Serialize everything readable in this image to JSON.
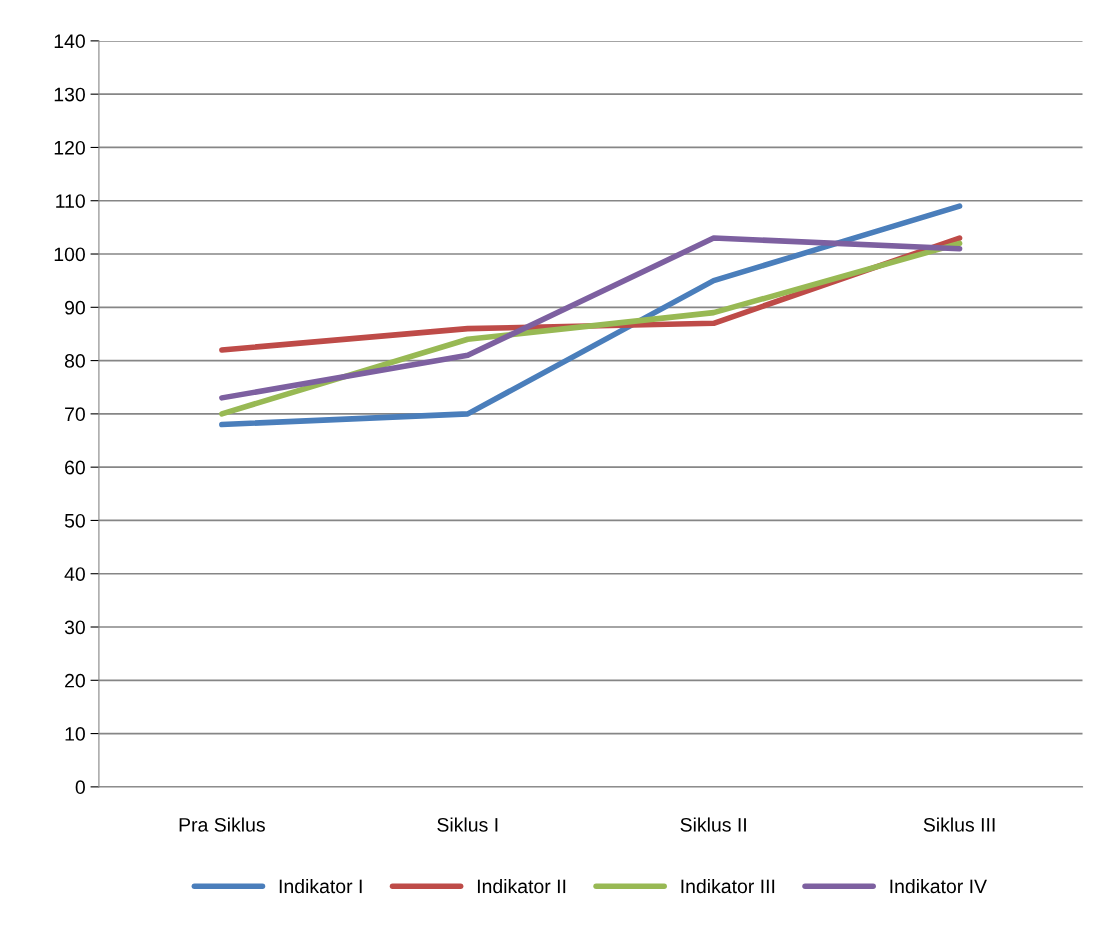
{
  "chart_data": {
    "type": "line",
    "categories": [
      "Pra Siklus",
      "Siklus I",
      "Siklus II",
      "Siklus III"
    ],
    "series": [
      {
        "name": "Indikator I",
        "color": "#4a7ebb",
        "values": [
          68,
          70,
          95,
          109
        ]
      },
      {
        "name": "Indikator II",
        "color": "#be4b48",
        "values": [
          82,
          86,
          87,
          103
        ]
      },
      {
        "name": "Indikator III",
        "color": "#98b954",
        "values": [
          70,
          84,
          89,
          102
        ]
      },
      {
        "name": "Indikator IV",
        "color": "#7d60a0",
        "values": [
          73,
          81,
          103,
          101
        ]
      }
    ],
    "ylim": [
      0,
      140
    ],
    "yticks": [
      0,
      10,
      20,
      30,
      40,
      50,
      60,
      70,
      80,
      90,
      100,
      110,
      120,
      130,
      140
    ],
    "grid": "y",
    "legend": "bottom",
    "marker": "none",
    "line_style": "solid"
  }
}
